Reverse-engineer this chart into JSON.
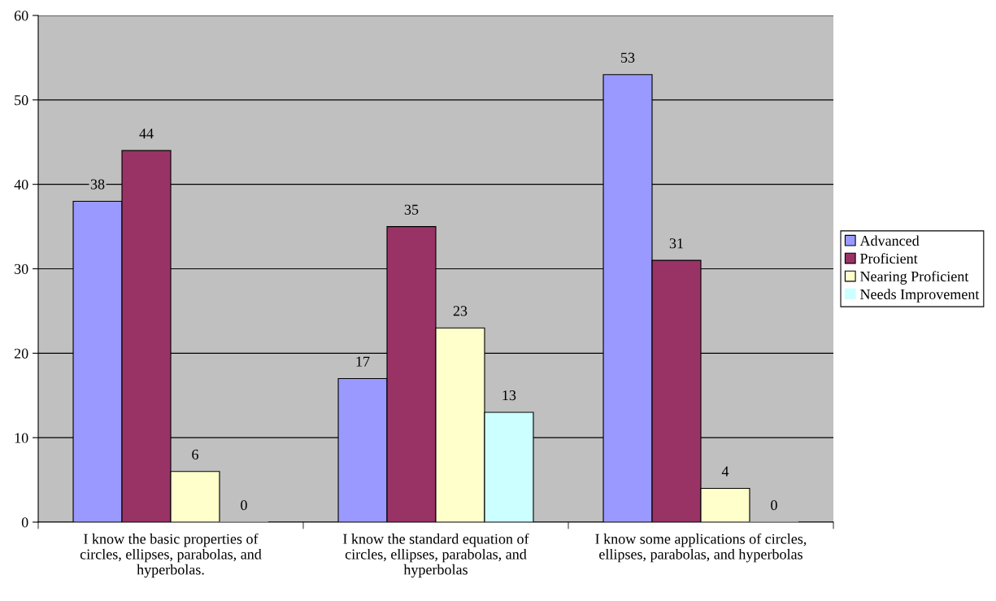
{
  "chart_data": {
    "type": "bar",
    "categories": [
      "I know the basic properties of\ncircles, ellipses, parabolas, and\nhyperbolas.",
      "I know the standard equation of\ncircles, ellipses, parabolas, and\nhyperbolas",
      "I know some applications of circles,\nellipses, parabolas, and hyperbolas"
    ],
    "series": [
      {
        "name": "Advanced",
        "color": "#9999ff",
        "values": [
          38,
          17,
          53
        ]
      },
      {
        "name": "Proficient",
        "color": "#993366",
        "values": [
          44,
          35,
          31
        ]
      },
      {
        "name": "Nearing Proficient",
        "color": "#ffffcc",
        "values": [
          6,
          23,
          4
        ]
      },
      {
        "name": "Needs Improvement",
        "color": "#ccffff",
        "values": [
          0,
          13,
          0
        ]
      }
    ],
    "ylim": [
      0,
      60
    ],
    "yticks": [
      0,
      10,
      20,
      30,
      40,
      50,
      60
    ],
    "grid": "y",
    "legend": "right",
    "data_labels": true
  }
}
